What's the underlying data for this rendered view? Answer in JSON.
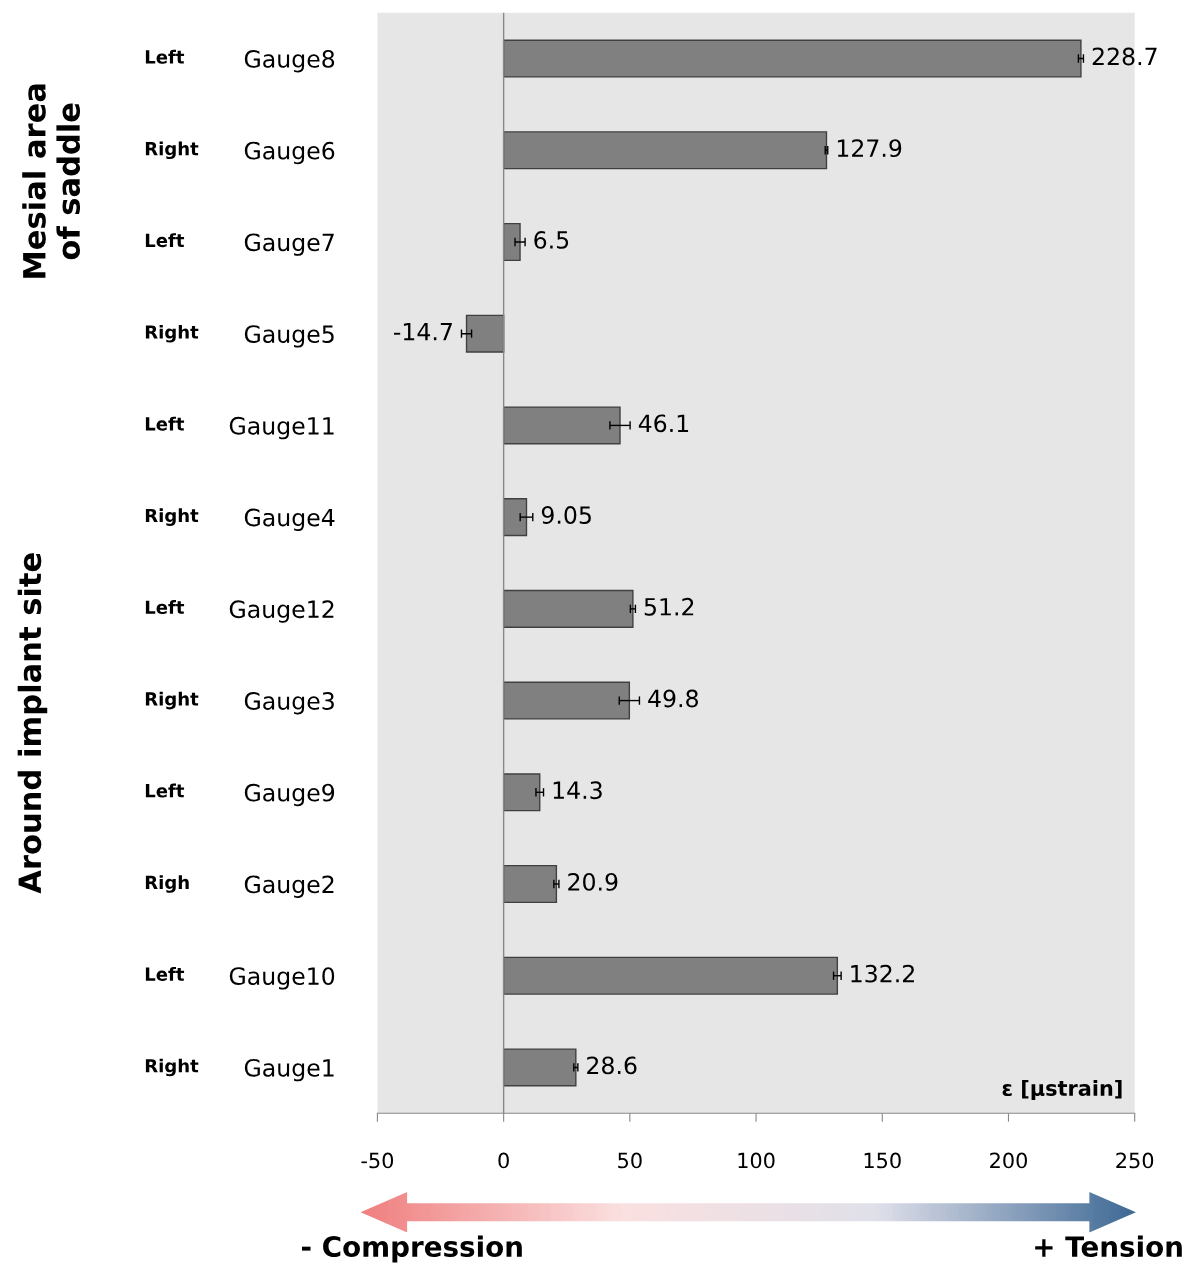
{
  "chart_data": {
    "type": "bar",
    "orientation": "horizontal",
    "categories": [
      "Gauge8",
      "Gauge6",
      "Gauge7",
      "Gauge5",
      "Gauge11",
      "Gauge4",
      "Gauge12",
      "Gauge3",
      "Gauge9",
      "Gauge2",
      "Gauge10",
      "Gauge1"
    ],
    "values": [
      228.7,
      127.9,
      6.5,
      -14.7,
      46.1,
      9.05,
      51.2,
      49.8,
      14.3,
      20.9,
      132.2,
      28.6
    ],
    "errors": [
      1,
      0.5,
      2,
      2,
      4,
      2.5,
      1,
      4,
      1.5,
      1,
      1.5,
      0.8
    ],
    "color": "#808080",
    "data_labels": true,
    "xlabel": "ε [µstrain]",
    "xlim": [
      -50,
      250
    ],
    "xticks": [
      -50,
      0,
      50,
      100,
      150,
      200,
      250
    ],
    "ref_lines": [
      {
        "axis": "x",
        "value": 0,
        "color": "#888888"
      }
    ],
    "annotations": [
      "Left",
      "Right",
      "Left",
      "Right",
      "Left",
      "Right",
      "Left",
      "Right",
      "Left",
      "Righ",
      "Left",
      "Right",
      "Mesial area\nof saddle",
      "Around implant site",
      "- Compression",
      "+ Tension"
    ]
  }
}
